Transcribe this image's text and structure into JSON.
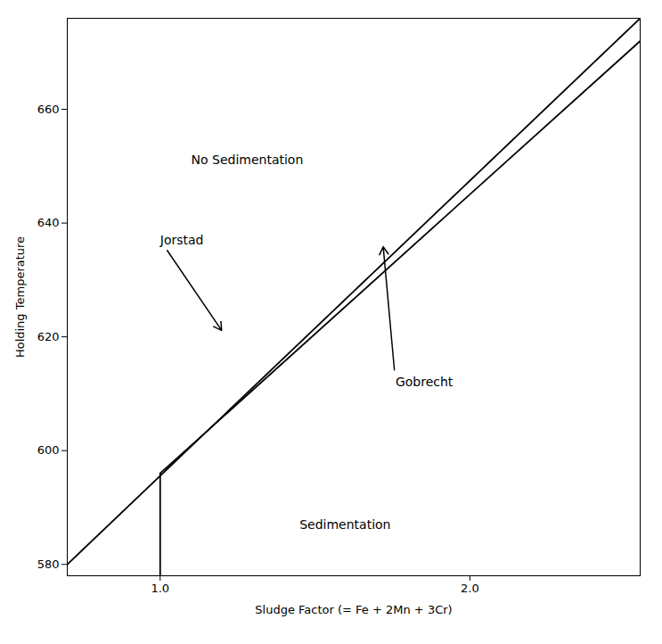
{
  "chart_data": {
    "type": "line",
    "title": "",
    "xlabel": "Sludge Factor (= Fe + 2Mn + 3Cr)",
    "ylabel": "Holding Temperature",
    "xlim": [
      0.7,
      2.55
    ],
    "ylim": [
      578,
      676
    ],
    "xticks": [
      {
        "value": 1.0,
        "label": "1.0"
      },
      {
        "value": 2.0,
        "label": "2.0"
      }
    ],
    "yticks": [
      580,
      600,
      620,
      640,
      660
    ],
    "grid": false,
    "series": [
      {
        "x": [
          0.7,
          2.55
        ],
        "values": [
          580,
          676
        ],
        "color": "#000000"
      },
      {
        "x": [
          1.0,
          2.55
        ],
        "values": [
          596,
          672
        ],
        "color": "#000000"
      },
      {
        "x": [
          1.0,
          1.0
        ],
        "values": [
          578,
          596
        ],
        "color": "#000000"
      }
    ],
    "annotations": [
      {
        "text": "Jorstad",
        "x": 1.0,
        "y": 637,
        "arrow_to": [
          1.2,
          621
        ]
      },
      {
        "text": "Gobrecht",
        "x": 1.76,
        "y": 612,
        "arrow_to": [
          1.72,
          636
        ]
      },
      {
        "text": "No Sedimentation",
        "x": 1.1,
        "y": 651
      },
      {
        "text": "Sedimentation",
        "x": 1.45,
        "y": 587
      }
    ]
  }
}
